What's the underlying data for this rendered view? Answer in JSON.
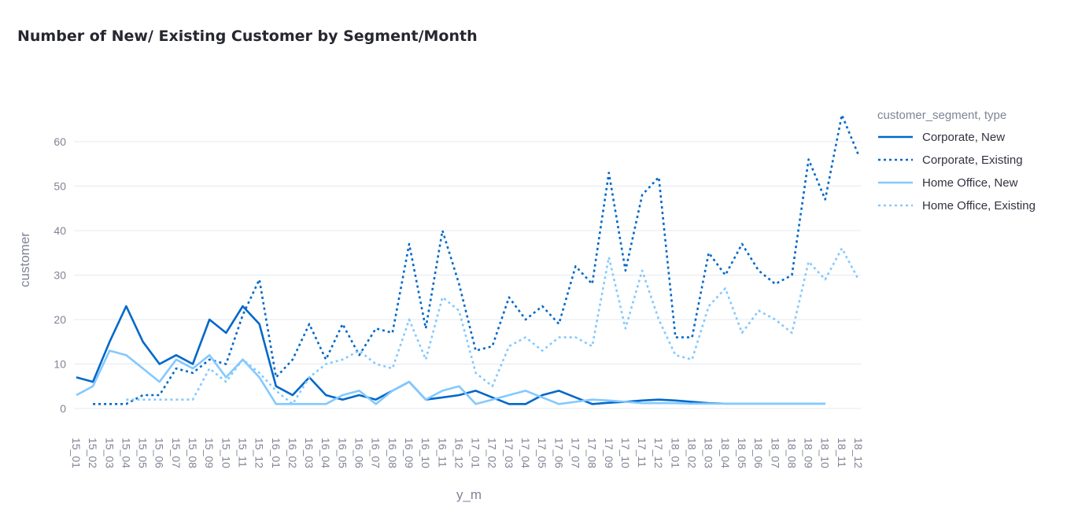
{
  "chart_data": {
    "type": "line",
    "title": "Number of New/ Existing Customer by Segment/Month",
    "xlabel": "y_m",
    "ylabel": "customer",
    "ylim": [
      0,
      66
    ],
    "y_ticks": [
      0,
      10,
      20,
      30,
      40,
      50,
      60
    ],
    "grid": true,
    "legend_title": "customer_segment, type",
    "legend_position": "right",
    "categories": [
      "15_01",
      "15_02",
      "15_03",
      "15_04",
      "15_05",
      "15_06",
      "15_07",
      "15_08",
      "15_09",
      "15_10",
      "15_11",
      "15_12",
      "16_01",
      "16_02",
      "16_03",
      "16_04",
      "16_05",
      "16_06",
      "16_07",
      "16_08",
      "16_09",
      "16_10",
      "16_11",
      "16_12",
      "17_01",
      "17_02",
      "17_03",
      "17_04",
      "17_05",
      "17_06",
      "17_07",
      "17_08",
      "17_09",
      "17_10",
      "17_11",
      "17_12",
      "18_01",
      "18_02",
      "18_03",
      "18_04",
      "18_05",
      "18_06",
      "18_07",
      "18_08",
      "18_09",
      "18_10",
      "18_11",
      "18_12"
    ],
    "series": [
      {
        "name": "Corporate, New",
        "color": "#0068c9",
        "dash": "solid",
        "values": [
          7,
          6,
          15,
          23,
          15,
          10,
          12,
          10,
          20,
          17,
          23,
          19,
          5,
          3,
          7,
          3,
          2,
          3,
          2,
          4,
          6,
          2,
          2.5,
          3,
          4,
          2.5,
          1,
          1,
          3,
          4,
          2.5,
          1,
          1.3,
          1.5,
          1.8,
          2,
          1.8,
          1.5,
          1.2,
          1.1,
          1.1,
          1.1,
          1.1,
          1.1,
          1.1,
          1.1,
          null,
          null
        ]
      },
      {
        "name": "Corporate, Existing",
        "color": "#0068c9",
        "dash": "dotted",
        "values": [
          null,
          1,
          1,
          1,
          3,
          3,
          9,
          8,
          11,
          10,
          21,
          29,
          7,
          11,
          19,
          11,
          19,
          12,
          18,
          17,
          37,
          18,
          40,
          28,
          13,
          14,
          25,
          20,
          23,
          19,
          32,
          28,
          53,
          31,
          48,
          52,
          16,
          16,
          35,
          30,
          37,
          31,
          28,
          30,
          56,
          47,
          66,
          57
        ]
      },
      {
        "name": "Home Office, New",
        "color": "#83c9ff",
        "dash": "solid",
        "values": [
          3,
          5,
          13,
          12,
          9,
          6,
          11,
          9,
          12,
          7,
          11,
          7,
          1,
          1,
          1,
          1,
          3,
          4,
          1,
          4,
          6,
          2,
          4,
          5,
          1,
          2,
          3,
          4,
          2.5,
          1,
          1.5,
          2,
          1.8,
          1.5,
          1.2,
          1.2,
          1.2,
          1.1,
          1.1,
          1.1,
          1.1,
          1.1,
          1.1,
          1.1,
          1.1,
          1.1,
          null,
          null
        ]
      },
      {
        "name": "Home Office, Existing",
        "color": "#83c9ff",
        "dash": "dotted",
        "values": [
          null,
          null,
          null,
          2,
          2,
          2,
          2,
          2,
          9,
          6,
          11,
          8,
          4,
          1,
          7,
          10,
          11,
          13,
          10,
          9,
          20,
          11,
          25,
          22,
          8,
          5,
          14,
          16,
          13,
          16,
          16,
          14,
          34,
          18,
          31,
          20,
          12,
          11,
          23,
          27,
          17,
          22,
          20,
          17,
          33,
          29,
          36,
          29
        ]
      }
    ]
  }
}
